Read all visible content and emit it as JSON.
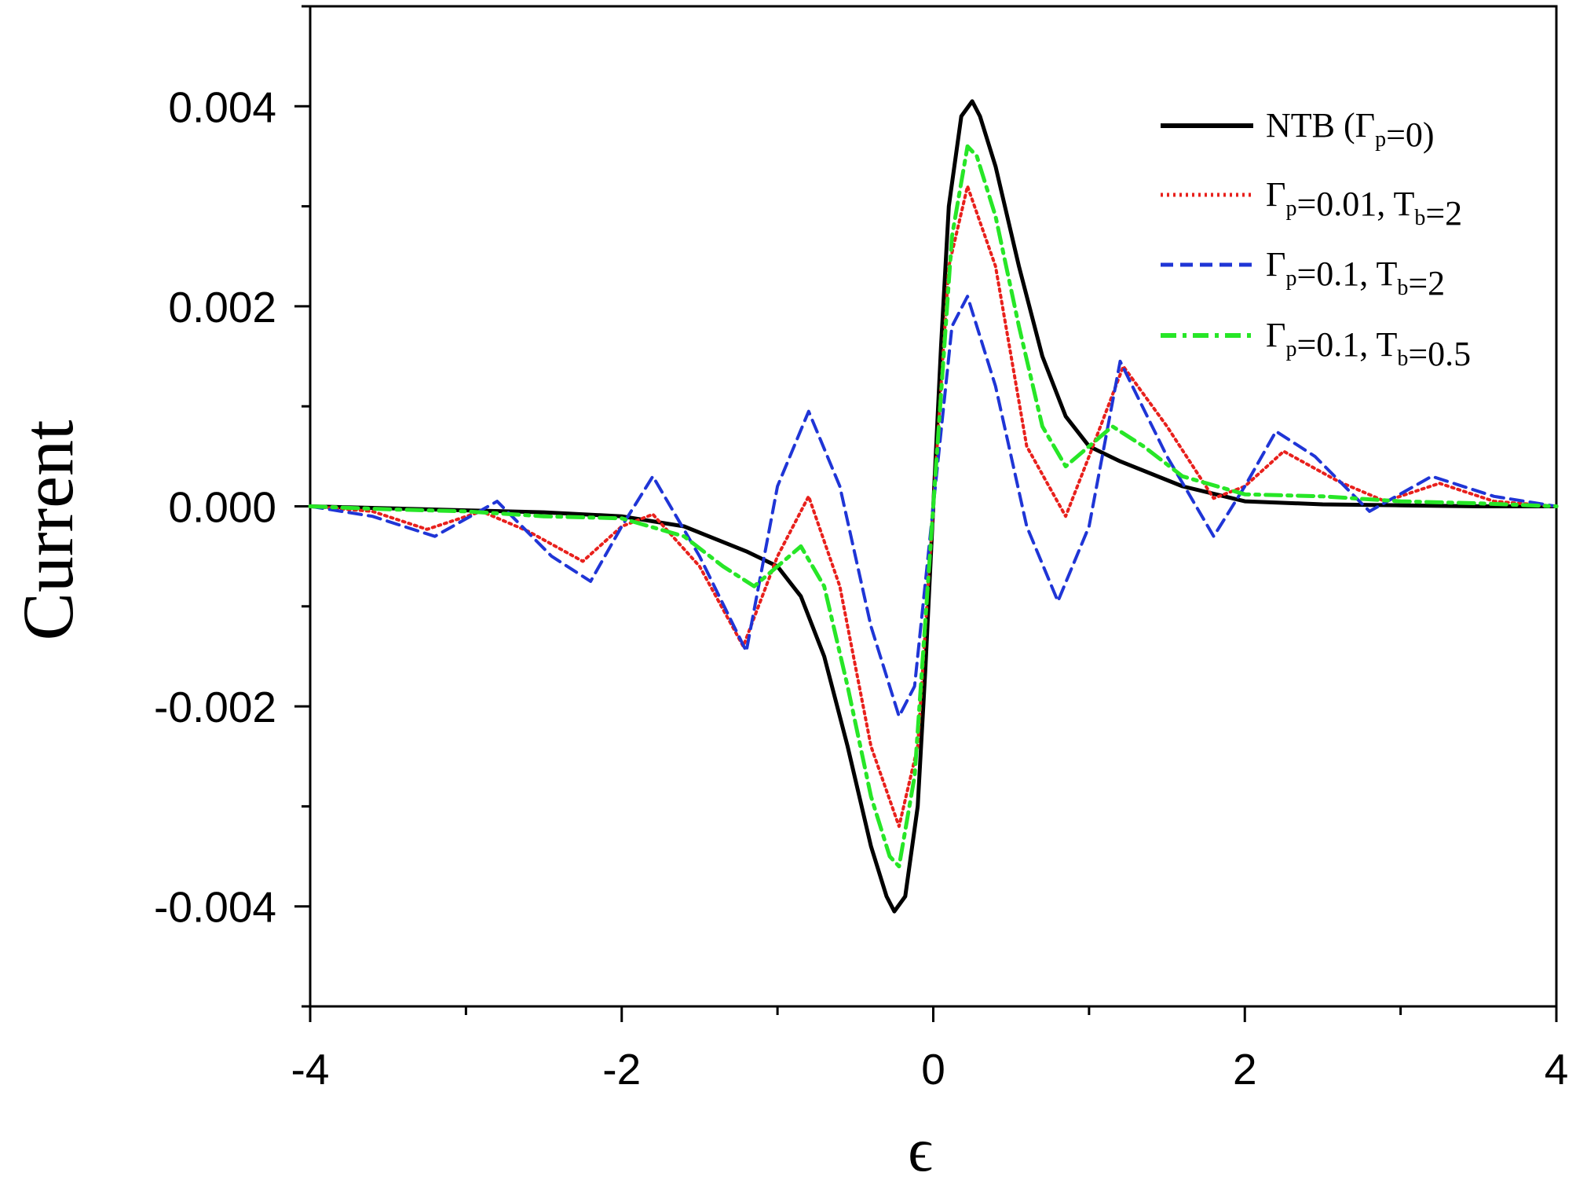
{
  "chart_data": {
    "type": "line",
    "xlabel": "ϵ",
    "ylabel": "Current",
    "xlim": [
      -4,
      4
    ],
    "ylim": [
      -0.005,
      0.005
    ],
    "x_ticks": [
      "-4",
      "-2",
      "0",
      "2",
      "4"
    ],
    "x_tick_values": [
      -4,
      -2,
      0,
      2,
      4
    ],
    "y_ticks": [
      "-0.004",
      "-0.002",
      "0.000",
      "0.002",
      "0.004"
    ],
    "y_tick_values": [
      -0.004,
      -0.002,
      0.0,
      0.002,
      0.004
    ],
    "grid": false,
    "legend_position": "top-right",
    "series": [
      {
        "name": "NTB (Γp=0)",
        "legend": {
          "a": "NTB (Γ",
          "sub1": "p",
          "b": "=0)",
          "sub2": "",
          "c": ""
        },
        "color": "#000000",
        "style": "solid",
        "x": [
          -4,
          -3.5,
          -3,
          -2.5,
          -2,
          -1.6,
          -1.2,
          -1,
          -0.85,
          -0.7,
          -0.55,
          -0.4,
          -0.3,
          -0.25,
          -0.18,
          -0.1,
          -0.05,
          0,
          0.05,
          0.1,
          0.18,
          0.25,
          0.3,
          0.4,
          0.55,
          0.7,
          0.85,
          1,
          1.2,
          1.6,
          2,
          2.5,
          3,
          3.5,
          4
        ],
        "y": [
          0,
          -2e-05,
          -4e-05,
          -6e-05,
          -0.0001,
          -0.0002,
          -0.00045,
          -0.0006,
          -0.0009,
          -0.0015,
          -0.0024,
          -0.0034,
          -0.0039,
          -0.00405,
          -0.0039,
          -0.003,
          -0.0016,
          0,
          0.0016,
          0.003,
          0.0039,
          0.00405,
          0.0039,
          0.0034,
          0.0024,
          0.0015,
          0.0009,
          0.0006,
          0.00045,
          0.0002,
          5e-05,
          2e-05,
          1e-05,
          0,
          0
        ]
      },
      {
        "name": "Γp=0.01, Tb=2",
        "legend": {
          "a": "Γ",
          "sub1": "p",
          "b": "=0.01, T",
          "sub2": "b",
          "c": "=2"
        },
        "color": "#e8201c",
        "style": "dotted",
        "x": [
          -4,
          -3.6,
          -3.25,
          -2.9,
          -2.6,
          -2.25,
          -2.0,
          -1.8,
          -1.5,
          -1.22,
          -1.0,
          -0.8,
          -0.6,
          -0.4,
          -0.22,
          -0.1,
          0,
          0.1,
          0.22,
          0.4,
          0.6,
          0.85,
          1.0,
          1.22,
          1.5,
          1.8,
          2.0,
          2.25,
          2.6,
          2.9,
          3.25,
          3.6,
          4
        ],
        "y": [
          0,
          -5e-05,
          -0.00023,
          -5e-05,
          -0.00025,
          -0.00055,
          -0.0002,
          -8e-05,
          -0.0006,
          -0.0014,
          -0.0005,
          0.0001,
          -0.0008,
          -0.0024,
          -0.0032,
          -0.0024,
          0,
          0.0024,
          0.0032,
          0.0024,
          0.0006,
          -0.0001,
          0.0005,
          0.0014,
          0.0008,
          8e-05,
          0.0002,
          0.00055,
          0.00025,
          5e-05,
          0.00023,
          5e-05,
          0
        ]
      },
      {
        "name": "Γp=0.1, Tb=2",
        "legend": {
          "a": "Γ",
          "sub1": "p",
          "b": "=0.1, T",
          "sub2": "b",
          "c": "=2"
        },
        "color": "#1f35d6",
        "style": "dashed",
        "x": [
          -4,
          -3.6,
          -3.2,
          -2.8,
          -2.45,
          -2.2,
          -2.0,
          -1.8,
          -1.5,
          -1.2,
          -1.0,
          -0.8,
          -0.6,
          -0.4,
          -0.22,
          -0.12,
          0,
          0.12,
          0.22,
          0.4,
          0.6,
          0.8,
          1.0,
          1.2,
          1.5,
          1.8,
          2.0,
          2.2,
          2.45,
          2.8,
          3.2,
          3.6,
          4
        ],
        "y": [
          0,
          -0.0001,
          -0.0003,
          5e-05,
          -0.0005,
          -0.00075,
          -0.0002,
          0.0003,
          -0.0005,
          -0.00145,
          0.0002,
          0.00095,
          0.0002,
          -0.0012,
          -0.0021,
          -0.0018,
          0,
          0.0018,
          0.0021,
          0.0012,
          -0.0002,
          -0.00095,
          -0.0002,
          0.00145,
          0.0005,
          -0.0003,
          0.0002,
          0.00075,
          0.0005,
          -5e-05,
          0.0003,
          0.0001,
          0
        ]
      },
      {
        "name": "Γp=0.1, Tb=0.5",
        "legend": {
          "a": "Γ",
          "sub1": "p",
          "b": "=0.1, T",
          "sub2": "b",
          "c": "=0.5"
        },
        "color": "#27e627",
        "style": "dashdot",
        "x": [
          -4,
          -3.5,
          -3,
          -2.5,
          -2,
          -1.6,
          -1.35,
          -1.15,
          -1.0,
          -0.85,
          -0.7,
          -0.55,
          -0.4,
          -0.28,
          -0.22,
          -0.12,
          0,
          0.12,
          0.22,
          0.28,
          0.4,
          0.55,
          0.7,
          0.85,
          1.0,
          1.15,
          1.35,
          1.6,
          2,
          2.5,
          3,
          3.5,
          4
        ],
        "y": [
          0,
          -3e-05,
          -5e-05,
          -0.0001,
          -0.00012,
          -0.0003,
          -0.0006,
          -0.0008,
          -0.0006,
          -0.0004,
          -0.0008,
          -0.0018,
          -0.0029,
          -0.0035,
          -0.0036,
          -0.0027,
          0,
          0.0027,
          0.0036,
          0.0035,
          0.0029,
          0.0018,
          0.0008,
          0.0004,
          0.0006,
          0.0008,
          0.0006,
          0.0003,
          0.00012,
          0.0001,
          5e-05,
          3e-05,
          0
        ]
      }
    ]
  }
}
